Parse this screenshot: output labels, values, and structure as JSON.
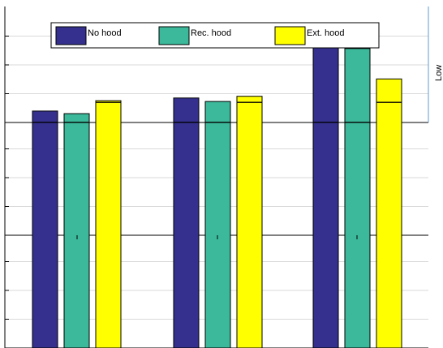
{
  "chart_data": {
    "type": "bar",
    "stacked": true,
    "grid": true,
    "legend": {
      "placement": "top",
      "entries": [
        {
          "name": "No hood",
          "color": "#35308e"
        },
        {
          "name": "Rec. hood",
          "color": "#3bb99a"
        },
        {
          "name": "Ext. hood",
          "color": "#ffff00"
        }
      ]
    },
    "side_label": "Low",
    "series": [
      {
        "name": "No hood",
        "color": "#35308e"
      },
      {
        "name": "Rec. hood",
        "color": "#3bb99a"
      },
      {
        "name": "Ext. hood",
        "color": "#ffff00"
      }
    ],
    "panels": [
      {
        "ylim": [
          0,
          4
        ],
        "groups": [
          {
            "bars": [
              {
                "base": 0.3,
                "total": 0.4
              },
              {
                "base": 0.3,
                "total": 0.37
              },
              {
                "base": 0.3,
                "total": 0.32
              }
            ]
          },
          {
            "bars": [
              {
                "base": 0.3,
                "total": 0.64
              },
              {
                "base": 0.3,
                "total": 0.58
              },
              {
                "base": 0.3,
                "total": 0.37
              }
            ]
          },
          {
            "bars": [
              {
                "base": 0.3,
                "total": 1.3
              },
              {
                "base": 0.3,
                "total": 1.15
              },
              {
                "base": 0.3,
                "total": 0.5
              }
            ]
          }
        ]
      },
      {
        "ylim": [
          0,
          4
        ],
        "groups": [
          {
            "bars": [
              {
                "base": 1.4,
                "total": 1.5
              },
              {
                "base": 1.4,
                "total": 1.47
              },
              {
                "base": 1.5,
                "total": 1.55
              }
            ]
          },
          {
            "bars": [
              {
                "base": 1.4,
                "total": 1.74
              },
              {
                "base": 1.4,
                "total": 1.68
              },
              {
                "base": 1.5,
                "total": 1.6
              }
            ]
          },
          {
            "bars": [
              {
                "base": 1.4,
                "total": 2.4
              },
              {
                "base": 1.4,
                "total": 2.25
              },
              {
                "base": 1.5,
                "total": 1.72
              }
            ]
          }
        ]
      },
      {
        "ylim": [
          0,
          4
        ],
        "groups": [
          {
            "bars": [
              {
                "base": 2.6,
                "total": 2.73
              },
              {
                "base": 2.6,
                "total": 2.7
              },
              {
                "base": 2.83,
                "total": 2.85
              }
            ]
          },
          {
            "bars": [
              {
                "base": 2.6,
                "total": 2.88
              },
              {
                "base": 2.6,
                "total": 2.84
              },
              {
                "base": 2.83,
                "total": 2.9
              }
            ]
          },
          {
            "bars": [
              {
                "base": 2.6,
                "total": 3.6
              },
              {
                "base": 2.6,
                "total": 3.45
              },
              {
                "base": 2.83,
                "total": 3.1
              }
            ]
          }
        ]
      }
    ]
  }
}
